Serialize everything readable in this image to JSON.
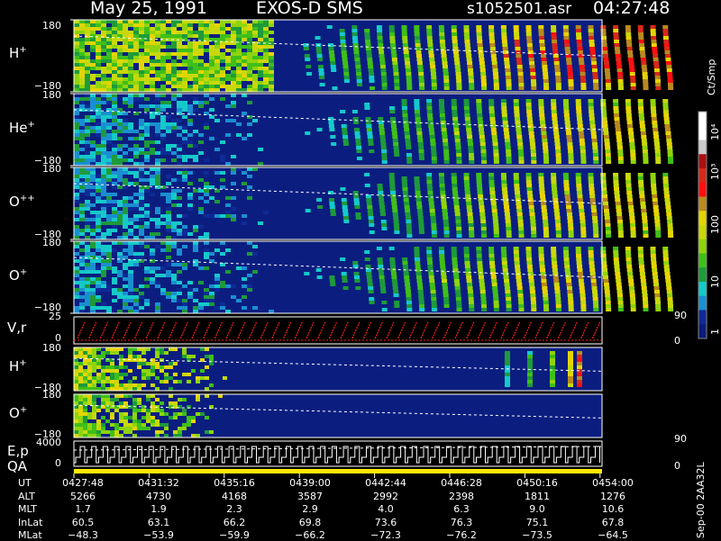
{
  "header": {
    "date": "May 25, 1991",
    "instrument": "EXOS-D SMS",
    "file": "s1052501.asr",
    "time": "04:27:48"
  },
  "panels": [
    {
      "label": "H",
      "sup": "+",
      "ymax": "180",
      "ymin": "−180"
    },
    {
      "label": "He",
      "sup": "+",
      "ymax": "180",
      "ymin": "−180"
    },
    {
      "label": "O",
      "sup": "++",
      "ymax": "180",
      "ymin": "−180"
    },
    {
      "label": "O",
      "sup": "+",
      "ymax": "180",
      "ymin": "−180"
    },
    {
      "label": "V,r",
      "sup": "",
      "ymax": "25",
      "ymin": "0",
      "rmax": "90",
      "rmin": "0"
    },
    {
      "label": "H",
      "sup": "+",
      "ymax": "180",
      "ymin": "−180"
    },
    {
      "label": "O",
      "sup": "+",
      "ymax": "180",
      "ymin": "−180"
    },
    {
      "label": "E,p",
      "sub": "QA",
      "ymax": "4000",
      "ymin": "0",
      "rmax": "90",
      "rmin": "0"
    }
  ],
  "colorbar": {
    "unit": "Ct/Smp",
    "labels": [
      "10⁴",
      "10³",
      "100",
      "10",
      "1"
    ]
  },
  "chart_data": {
    "type": "heatmap",
    "x_ticks": [
      "0427:48",
      "0431:32",
      "0435:16",
      "0439:00",
      "0442:44",
      "0446:28",
      "0450:16",
      "0454:00"
    ],
    "ephemeris": [
      {
        "name": "UT",
        "values": [
          "0427:48",
          "0431:32",
          "0435:16",
          "0439:00",
          "0442:44",
          "0446:28",
          "0450:16",
          "0454:00"
        ]
      },
      {
        "name": "ALT",
        "values": [
          "5266",
          "4730",
          "4168",
          "3587",
          "2992",
          "2398",
          "1811",
          "1276"
        ]
      },
      {
        "name": "MLT",
        "values": [
          "1.7",
          "1.9",
          "2.3",
          "2.9",
          "4.0",
          "6.3",
          "9.0",
          "10.6"
        ]
      },
      {
        "name": "InLat",
        "values": [
          "60.5",
          "63.1",
          "66.2",
          "69.8",
          "73.6",
          "76.3",
          "75.1",
          "67.8"
        ]
      },
      {
        "name": "MLat",
        "values": [
          "−48.3",
          "−53.9",
          "−59.9",
          "−66.2",
          "−72.3",
          "−76.2",
          "−73.5",
          "−64.5"
        ]
      }
    ]
  },
  "footer": "Sep-00 2AA32L"
}
